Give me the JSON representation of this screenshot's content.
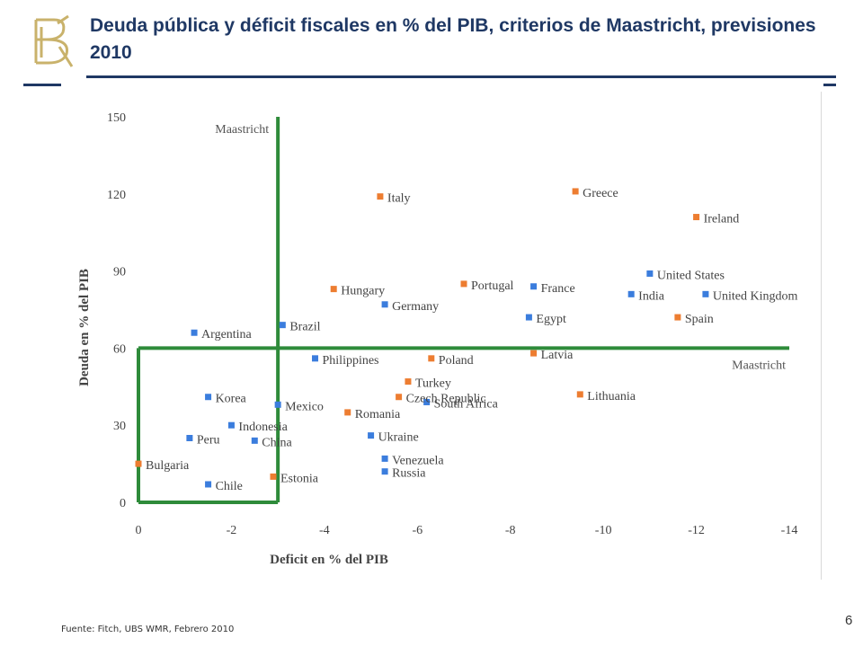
{
  "slide": {
    "title": "Deuda pública y déficit fiscales en % del PIB, criterios de Maastricht, previsiones 2010",
    "source": "Fuente: Fitch, UBS WMR, Febrero 2010",
    "page_number": "6"
  },
  "colors": {
    "title": "#1f3864",
    "rule": "#1f3864",
    "logo": "#c9b26b",
    "maastricht": "#2e8b3a",
    "blue_marker": "#3b7ddd",
    "orange_marker": "#ed7d31",
    "axis_text": "#444444"
  },
  "chart_data": {
    "type": "scatter",
    "xlabel": "Deficit en % del PIB",
    "ylabel": "Deuda en % del PIB",
    "xlim": [
      0,
      -14
    ],
    "ylim": [
      0,
      150
    ],
    "xticks": [
      0,
      -2,
      -4,
      -6,
      -8,
      -10,
      -12,
      -14
    ],
    "yticks": [
      0,
      30,
      60,
      90,
      120,
      150
    ],
    "maastricht": {
      "deficit_limit": -3,
      "debt_limit": 60,
      "label_vertical": "Maastricht",
      "label_horizontal": "Maastricht"
    },
    "series": [
      {
        "name": "blue",
        "color": "#3b7ddd",
        "points": [
          {
            "label": "Argentina",
            "x": -1.2,
            "y": 66
          },
          {
            "label": "Brazil",
            "x": -3.1,
            "y": 69
          },
          {
            "label": "Philippines",
            "x": -3.8,
            "y": 56
          },
          {
            "label": "Korea",
            "x": -1.5,
            "y": 41
          },
          {
            "label": "Mexico",
            "x": -3.0,
            "y": 38
          },
          {
            "label": "Indonesia",
            "x": -2.0,
            "y": 30
          },
          {
            "label": "Peru",
            "x": -1.1,
            "y": 25
          },
          {
            "label": "China",
            "x": -2.5,
            "y": 24
          },
          {
            "label": "Chile",
            "x": -1.5,
            "y": 7
          },
          {
            "label": "Germany",
            "x": -5.3,
            "y": 77
          },
          {
            "label": "South Africa",
            "x": -6.2,
            "y": 39
          },
          {
            "label": "Ukraine",
            "x": -5.0,
            "y": 26
          },
          {
            "label": "Venezuela",
            "x": -5.3,
            "y": 17
          },
          {
            "label": "Russia",
            "x": -5.3,
            "y": 12
          },
          {
            "label": "France",
            "x": -8.5,
            "y": 84
          },
          {
            "label": "Egypt",
            "x": -8.4,
            "y": 72
          },
          {
            "label": "United States",
            "x": -11.0,
            "y": 89
          },
          {
            "label": "India",
            "x": -10.6,
            "y": 81
          },
          {
            "label": "United Kingdom",
            "x": -12.2,
            "y": 81
          }
        ]
      },
      {
        "name": "orange",
        "color": "#ed7d31",
        "points": [
          {
            "label": "Bulgaria",
            "x": 0.0,
            "y": 15
          },
          {
            "label": "Estonia",
            "x": -2.9,
            "y": 10
          },
          {
            "label": "Hungary",
            "x": -4.2,
            "y": 83
          },
          {
            "label": "Italy",
            "x": -5.2,
            "y": 119
          },
          {
            "label": "Portugal",
            "x": -7.0,
            "y": 85
          },
          {
            "label": "Greece",
            "x": -9.4,
            "y": 121
          },
          {
            "label": "Ireland",
            "x": -12.0,
            "y": 111
          },
          {
            "label": "Spain",
            "x": -11.6,
            "y": 72
          },
          {
            "label": "Poland",
            "x": -6.3,
            "y": 56
          },
          {
            "label": "Latvia",
            "x": -8.5,
            "y": 58
          },
          {
            "label": "Turkey",
            "x": -5.8,
            "y": 47
          },
          {
            "label": "Czech Republic",
            "x": -5.6,
            "y": 41
          },
          {
            "label": "Romania",
            "x": -4.5,
            "y": 35
          },
          {
            "label": "Lithuania",
            "x": -9.5,
            "y": 42
          }
        ]
      }
    ]
  }
}
